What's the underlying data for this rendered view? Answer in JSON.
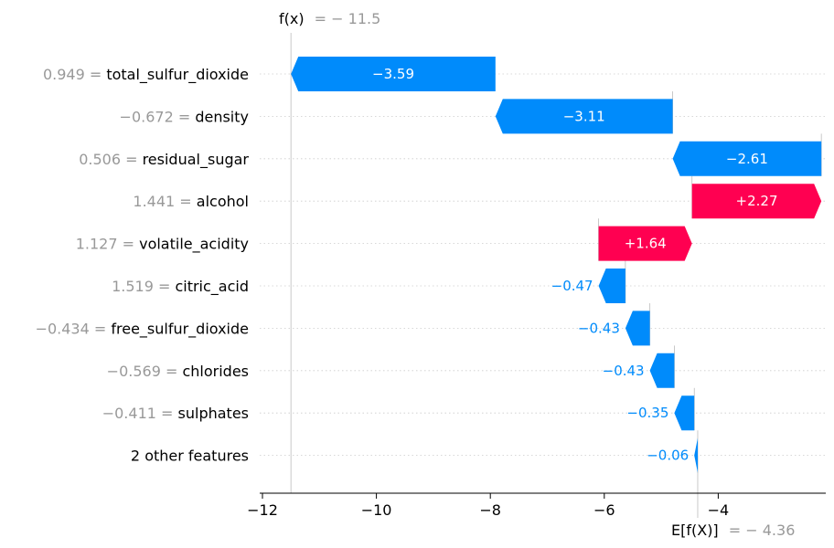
{
  "chart_data": {
    "type": "waterfall",
    "fx": {
      "math": "f(x)",
      "value": "− 11.5",
      "x": -11.5
    },
    "efx": {
      "math": "E[f(X)]",
      "value": "− 4.36",
      "x": -4.36
    },
    "features": [
      {
        "name": "total_sulfur_dioxide",
        "value": "0.949",
        "contribution": -3.59,
        "label": "−3.59"
      },
      {
        "name": "density",
        "value": "−0.672",
        "contribution": -3.11,
        "label": "−3.11"
      },
      {
        "name": "residual_sugar",
        "value": "0.506",
        "contribution": -2.61,
        "label": "−2.61"
      },
      {
        "name": "alcohol",
        "value": "1.441",
        "contribution": 2.27,
        "label": "+2.27"
      },
      {
        "name": "volatile_acidity",
        "value": "1.127",
        "contribution": 1.64,
        "label": "+1.64"
      },
      {
        "name": "citric_acid",
        "value": "1.519",
        "contribution": -0.47,
        "label": "−0.47"
      },
      {
        "name": "free_sulfur_dioxide",
        "value": "−0.434",
        "contribution": -0.43,
        "label": "−0.43"
      },
      {
        "name": "chlorides",
        "value": "−0.569",
        "contribution": -0.43,
        "label": "−0.43"
      },
      {
        "name": "sulphates",
        "value": "−0.411",
        "contribution": -0.35,
        "label": "−0.35"
      },
      {
        "name": "2 other features",
        "value": "",
        "contribution": -0.06,
        "label": "−0.06"
      }
    ],
    "xticks": [
      {
        "v": -12,
        "label": "−12"
      },
      {
        "v": -10,
        "label": "−10"
      },
      {
        "v": -8,
        "label": "−8"
      },
      {
        "v": -6,
        "label": "−6"
      },
      {
        "v": -4,
        "label": "−4"
      }
    ],
    "xlim": [
      -12.05,
      -2.05
    ],
    "colors": {
      "negative": "#008bfb",
      "positive": "#ff0051",
      "value_text": "#999999",
      "grid": "#cccccc"
    }
  }
}
